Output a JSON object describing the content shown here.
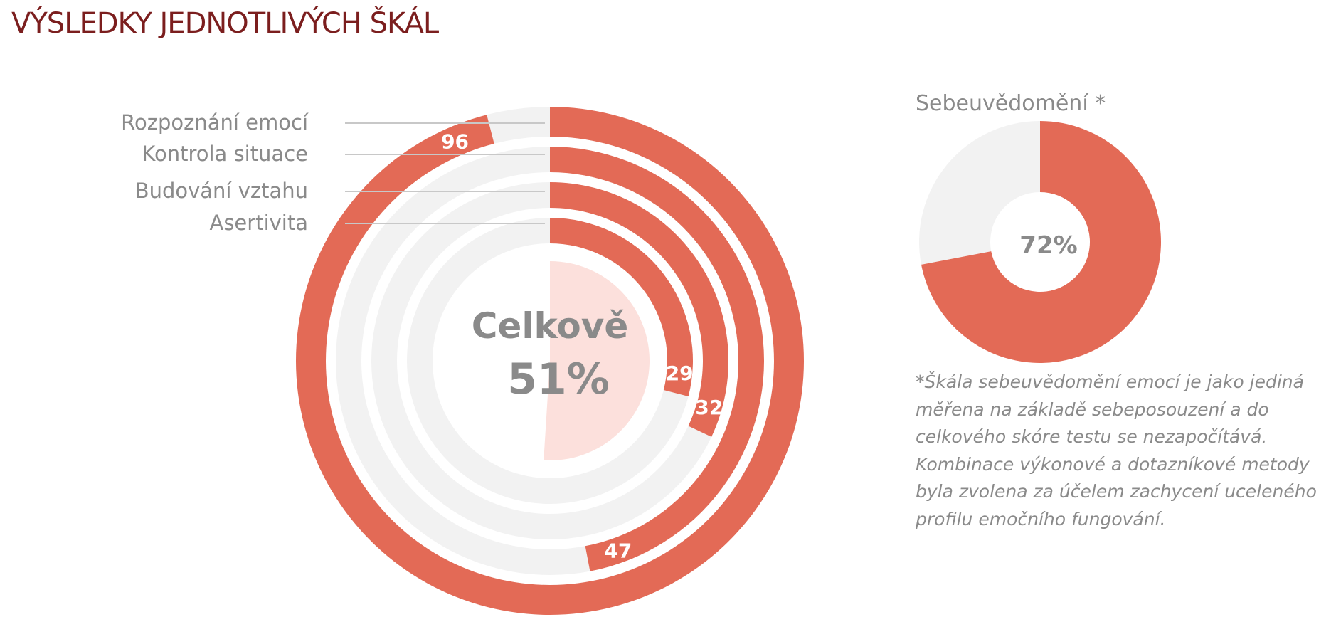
{
  "header": {
    "title": "VÝSLEDKY JEDNOTLIVÝCH ŠKÁL"
  },
  "colors": {
    "title": "#7b1e1e",
    "accent": "#e36a56",
    "track": "#f2f2f2",
    "center_fill": "#fce0dc",
    "muted_text": "#8a8a8a"
  },
  "chart_data": [
    {
      "type": "radial-bar",
      "center_title": "Celkově",
      "center_value": "51%",
      "center_percent": 51,
      "max": 100,
      "series": [
        {
          "name": "Rozpoznání emocí",
          "value": 96,
          "label": "96"
        },
        {
          "name": "Kontrola situace",
          "value": 47,
          "label": "47"
        },
        {
          "name": "Budování vztahu",
          "value": 32,
          "label": "32"
        },
        {
          "name": "Asertivita",
          "value": 29,
          "label": "29"
        }
      ]
    },
    {
      "type": "donut",
      "title": "Sebeuvědomění *",
      "value": 72,
      "label": "72%",
      "max": 100
    }
  ],
  "footnote": "*Škála sebeuvědomění emocí je jako jediná měřena na základě sebeposouzení a do celkového skóre testu se nezapočítává. Kombinace výkonové a dotazníkové metody byla zvolena za účelem zachycení uceleného profilu emočního fungování."
}
